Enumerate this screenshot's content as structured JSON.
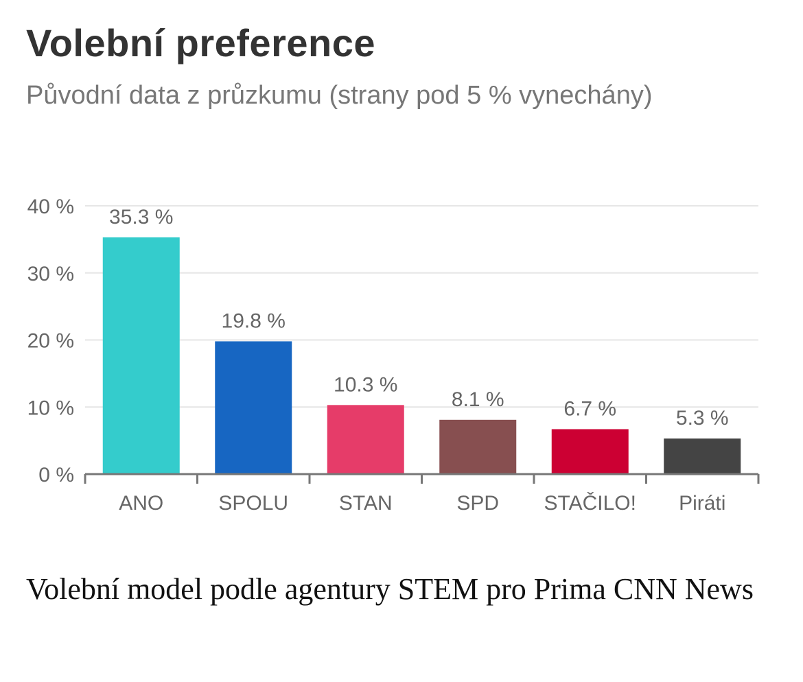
{
  "header": {
    "title": "Volební preference",
    "subtitle": "Původní data z průzkumu (strany pod 5 % vynechány)"
  },
  "caption": "Volební model podle agentury STEM pro Prima CNN News",
  "chart_data": {
    "type": "bar",
    "categories": [
      "ANO",
      "SPOLU",
      "STAN",
      "SPD",
      "STAČILO!",
      "Piráti"
    ],
    "values": [
      35.3,
      19.8,
      10.3,
      8.1,
      6.7,
      5.3
    ],
    "value_labels": [
      "35.3 %",
      "19.8 %",
      "10.3 %",
      "8.1 %",
      "6.7 %",
      "5.3 %"
    ],
    "colors": [
      "#34CCCC",
      "#1766C2",
      "#E63C69",
      "#874F50",
      "#CC0033",
      "#444444"
    ],
    "ylim": [
      0,
      40
    ],
    "yticks": [
      0,
      10,
      20,
      30,
      40
    ],
    "ytick_labels": [
      "0 %",
      "10 %",
      "20 %",
      "30 %",
      "40 %"
    ],
    "grid": true,
    "xlabel": "",
    "ylabel": ""
  }
}
